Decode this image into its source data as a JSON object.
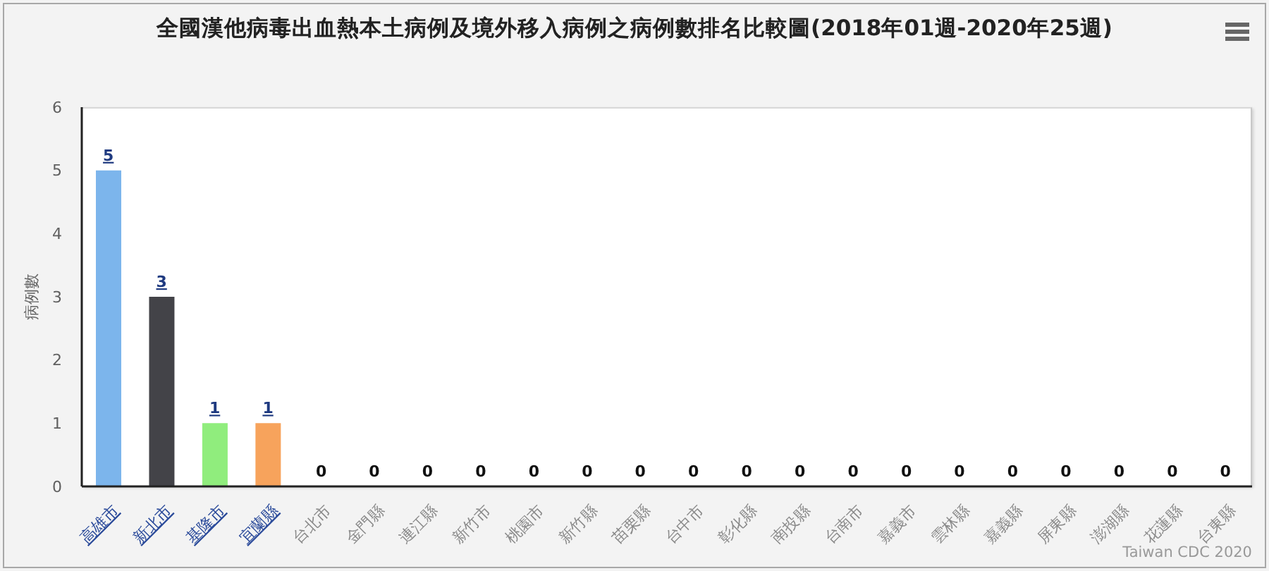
{
  "chart_data": {
    "type": "bar",
    "title": "全國漢他病毒出血熱本土病例及境外移入病例之病例數排名比較圖(2018年01週-2020年25週)",
    "ylabel": "病例數",
    "categories": [
      "高雄市",
      "新北市",
      "基隆市",
      "宜蘭縣",
      "台北市",
      "金門縣",
      "連江縣",
      "新竹市",
      "桃園市",
      "新竹縣",
      "苗栗縣",
      "台中市",
      "彰化縣",
      "南投縣",
      "台南市",
      "嘉義市",
      "雲林縣",
      "嘉義縣",
      "屏東縣",
      "澎湖縣",
      "花蓮縣",
      "台東縣"
    ],
    "values": [
      5,
      3,
      1,
      1,
      0,
      0,
      0,
      0,
      0,
      0,
      0,
      0,
      0,
      0,
      0,
      0,
      0,
      0,
      0,
      0,
      0,
      0
    ],
    "colors": [
      "#7cb5ec",
      "#434348",
      "#90ed7d",
      "#f7a35c",
      "#8085e9",
      "#f15c80",
      "#e4d354",
      "#2b908f",
      "#f45b5b",
      "#91e8e1",
      "#7cb5ec",
      "#434348",
      "#90ed7d",
      "#f7a35c",
      "#8085e9",
      "#f15c80",
      "#e4d354",
      "#2b908f",
      "#f45b5b",
      "#91e8e1",
      "#7cb5ec",
      "#434348"
    ],
    "ylim": [
      0,
      6
    ],
    "yticks": [
      0,
      1,
      2,
      3,
      4,
      5,
      6
    ],
    "data_labels": true,
    "annotations": [
      "Taiwan CDC 2020"
    ]
  }
}
